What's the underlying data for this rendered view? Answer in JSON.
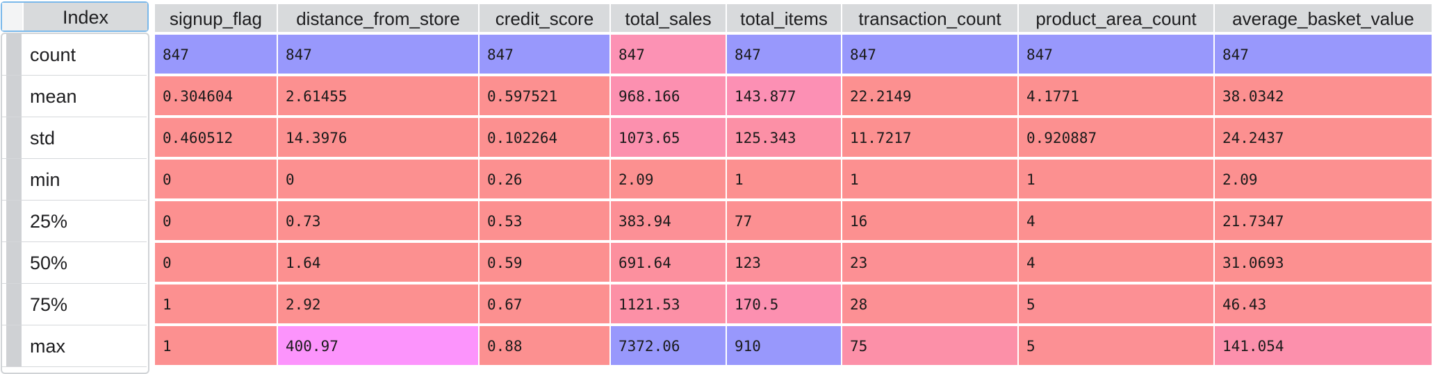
{
  "index_header": "Index",
  "columns": [
    "signup_flag",
    "distance_from_store",
    "credit_score",
    "total_sales",
    "total_items",
    "transaction_count",
    "product_area_count",
    "average_basket_value"
  ],
  "rows": [
    {
      "label": "count",
      "values": [
        "847",
        "847",
        "847",
        "847",
        "847",
        "847",
        "847",
        "847"
      ]
    },
    {
      "label": "mean",
      "values": [
        "0.304604",
        "2.61455",
        "0.597521",
        "968.166",
        "143.877",
        "22.2149",
        "4.1771",
        "38.0342"
      ]
    },
    {
      "label": "std",
      "values": [
        "0.460512",
        "14.3976",
        "0.102264",
        "1073.65",
        "125.343",
        "11.7217",
        "0.920887",
        "24.2437"
      ]
    },
    {
      "label": "min",
      "values": [
        "0",
        "0",
        "0.26",
        "2.09",
        "1",
        "1",
        "1",
        "2.09"
      ]
    },
    {
      "label": "25%",
      "values": [
        "0",
        "0.73",
        "0.53",
        "383.94",
        "77",
        "16",
        "4",
        "21.7347"
      ]
    },
    {
      "label": "50%",
      "values": [
        "0",
        "1.64",
        "0.59",
        "691.64",
        "123",
        "23",
        "4",
        "31.0693"
      ]
    },
    {
      "label": "75%",
      "values": [
        "1",
        "2.92",
        "0.67",
        "1121.53",
        "170.5",
        "28",
        "5",
        "46.43"
      ]
    },
    {
      "label": "max",
      "values": [
        "1",
        "400.97",
        "0.88",
        "7372.06",
        "910",
        "75",
        "5",
        "141.054"
      ]
    }
  ],
  "cell_colors": [
    [
      "#9898fc",
      "#9898fc",
      "#9898fc",
      "#fc92b4",
      "#9898fc",
      "#9898fc",
      "#9898fc",
      "#9898fc"
    ],
    [
      "#fc9090",
      "#fc9090",
      "#fc9090",
      "#fc90b0",
      "#fc90b4",
      "#fc9090",
      "#fc9090",
      "#fc9090"
    ],
    [
      "#fc9090",
      "#fc9090",
      "#fc9090",
      "#fc90ae",
      "#fc90a6",
      "#fc9090",
      "#fc9090",
      "#fc9090"
    ],
    [
      "#fc9090",
      "#fc9090",
      "#fc9090",
      "#fc9090",
      "#fc9090",
      "#fc9090",
      "#fc9090",
      "#fc9090"
    ],
    [
      "#fc9090",
      "#fc9090",
      "#fc9090",
      "#fc9096",
      "#fc9092",
      "#fc9090",
      "#fc9090",
      "#fc9090"
    ],
    [
      "#fc9090",
      "#fc9090",
      "#fc9090",
      "#fc909e",
      "#fc909a",
      "#fc9094",
      "#fc9090",
      "#fc9090"
    ],
    [
      "#fc9090",
      "#fc9090",
      "#fc9090",
      "#fc90a6",
      "#fc90b0",
      "#fc9094",
      "#fc9094",
      "#fc9094"
    ],
    [
      "#fc9090",
      "#fc94fc",
      "#fc9090",
      "#9898fc",
      "#9898fc",
      "#fc90a8",
      "#fc9094",
      "#fc90ac"
    ]
  ]
}
